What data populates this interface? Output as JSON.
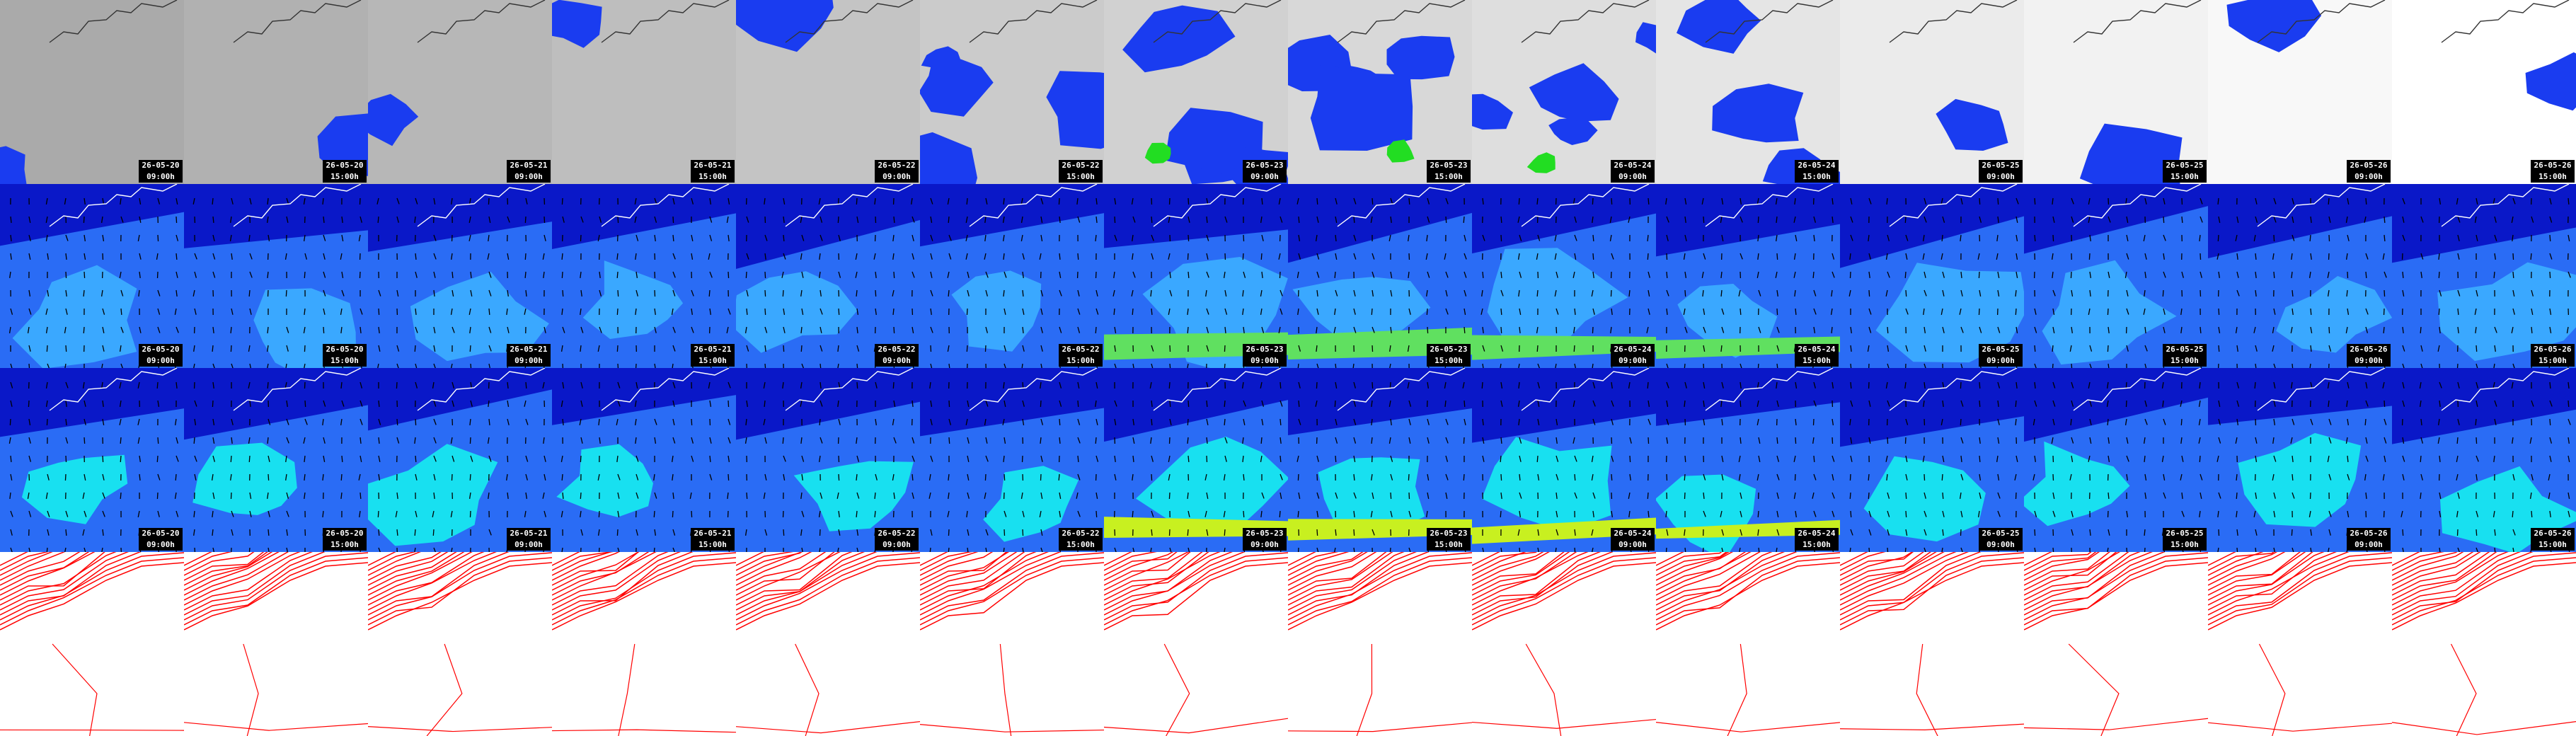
{
  "columns": [
    {
      "date": "26-05-20",
      "time": "09:00h"
    },
    {
      "date": "26-05-20",
      "time": "15:00h"
    },
    {
      "date": "26-05-21",
      "time": "09:00h"
    },
    {
      "date": "26-05-21",
      "time": "15:00h"
    },
    {
      "date": "26-05-22",
      "time": "09:00h"
    },
    {
      "date": "26-05-22",
      "time": "15:00h"
    },
    {
      "date": "26-05-23",
      "time": "09:00h"
    },
    {
      "date": "26-05-23",
      "time": "15:00h"
    },
    {
      "date": "26-05-24",
      "time": "09:00h"
    },
    {
      "date": "26-05-24",
      "time": "15:00h"
    },
    {
      "date": "26-05-25",
      "time": "09:00h"
    },
    {
      "date": "26-05-25",
      "time": "15:00h"
    },
    {
      "date": "26-05-26",
      "time": "09:00h"
    },
    {
      "date": "26-05-26",
      "time": "15:00h"
    }
  ]
}
